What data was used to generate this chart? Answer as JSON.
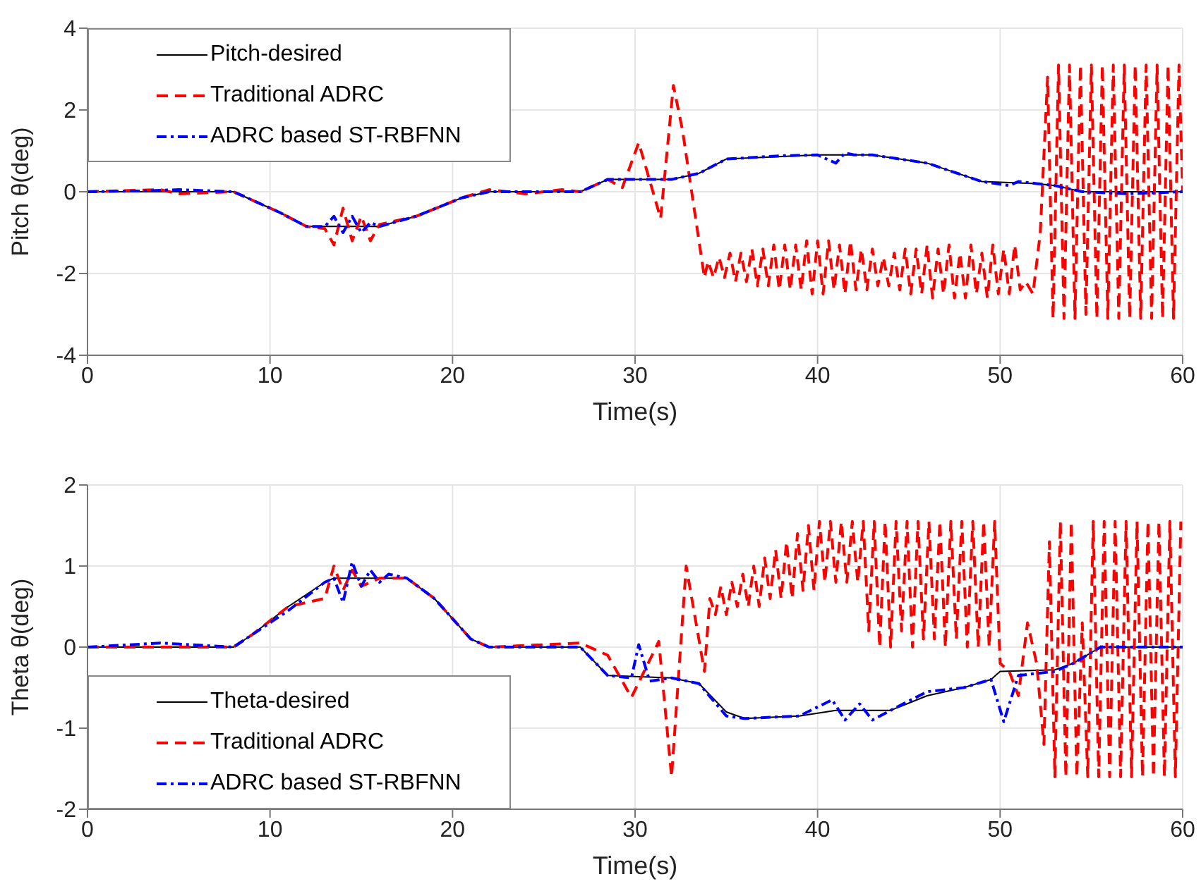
{
  "chart_data": [
    {
      "type": "line",
      "xlabel": "Time(s)",
      "ylabel": "Pitch θ(deg)",
      "xlim": [
        0,
        60
      ],
      "xticks": [
        0,
        10,
        20,
        30,
        40,
        50,
        60
      ],
      "ylim": [
        -4,
        4
      ],
      "yticks": [
        -4,
        -2,
        0,
        2,
        4
      ],
      "grid": true,
      "legend": "top left",
      "series": [
        {
          "name": "Pitch-desired",
          "color": "#000000",
          "line_style": "solid",
          "x": [
            0,
            8,
            10.5,
            12,
            16,
            18,
            20.5,
            22,
            27,
            28.5,
            32,
            33.5,
            35,
            40,
            43,
            46,
            49,
            52,
            53,
            54.5,
            60
          ],
          "values": [
            0,
            0,
            -0.5,
            -0.85,
            -0.85,
            -0.6,
            -0.15,
            0,
            0,
            0.3,
            0.3,
            0.45,
            0.8,
            0.9,
            0.9,
            0.7,
            0.25,
            0.2,
            0.15,
            0,
            0
          ]
        },
        {
          "name": "Traditional ADRC",
          "color": "#ff0000",
          "line_style": "dashed",
          "x": [
            0,
            4,
            5,
            8,
            10.5,
            12,
            13,
            13.5,
            14,
            14.5,
            15,
            15.5,
            16,
            18,
            20.5,
            22,
            24,
            26,
            27,
            28.5,
            29.3,
            30.2,
            31.4,
            32.1,
            32.6,
            33.8,
            34.0,
            34.3,
            34.6,
            34.9,
            35.2,
            35.5,
            35.8,
            36.1,
            36.4,
            36.7,
            37.0,
            37.3,
            37.6,
            37.9,
            38.2,
            38.5,
            38.8,
            39.1,
            39.4,
            39.7,
            40.0,
            40.3,
            40.6,
            40.9,
            41.2,
            41.5,
            41.8,
            42.1,
            42.4,
            42.7,
            43.0,
            43.3,
            43.6,
            43.9,
            44.2,
            44.5,
            44.8,
            45.1,
            45.4,
            45.7,
            46.0,
            46.3,
            46.6,
            46.9,
            47.2,
            47.5,
            47.8,
            48.1,
            48.4,
            48.7,
            49.0,
            49.3,
            49.6,
            49.9,
            50.2,
            50.5,
            50.8,
            51.1,
            51.4,
            51.8,
            52.2,
            52.6,
            52.9,
            53.2,
            53.5,
            53.8,
            54.1,
            54.4,
            54.7,
            55.0,
            55.3,
            55.6,
            55.9,
            56.2,
            56.5,
            56.8,
            57.1,
            57.4,
            57.7,
            58.0,
            58.3,
            58.6,
            58.9,
            59.2,
            59.5,
            59.8,
            60
          ],
          "values": [
            0,
            0.05,
            -0.05,
            0,
            -0.5,
            -0.85,
            -0.9,
            -1.3,
            -0.4,
            -1.2,
            -0.6,
            -1.2,
            -0.8,
            -0.6,
            -0.15,
            0.05,
            -0.05,
            0.05,
            0,
            0.3,
            0.1,
            1.2,
            -0.65,
            2.6,
            1.5,
            -2.1,
            -1.7,
            -2.1,
            -1.6,
            -2.1,
            -1.5,
            -2.2,
            -1.5,
            -2.2,
            -1.4,
            -2.3,
            -1.4,
            -2.3,
            -1.3,
            -2.4,
            -1.3,
            -2.4,
            -1.3,
            -2.4,
            -1.2,
            -2.5,
            -1.2,
            -2.5,
            -1.2,
            -2.4,
            -1.3,
            -2.5,
            -1.2,
            -2.4,
            -1.4,
            -2.4,
            -1.4,
            -2.3,
            -1.6,
            -2.3,
            -1.5,
            -2.4,
            -1.4,
            -2.5,
            -1.4,
            -2.5,
            -1.3,
            -2.6,
            -1.4,
            -2.5,
            -1.3,
            -2.6,
            -1.5,
            -2.6,
            -1.3,
            -2.5,
            -1.5,
            -2.6,
            -1.3,
            -2.5,
            -1.4,
            -2.5,
            -1.3,
            -2.4,
            -2.2,
            -2.5,
            -1.0,
            2.8,
            -3.1,
            3.1,
            -3.1,
            3.1,
            -3.1,
            3.1,
            -3.0,
            3.1,
            -3.1,
            3.1,
            -3.1,
            3.1,
            -3.1,
            3.1,
            -3.1,
            3.1,
            -3.1,
            3.1,
            -3.1,
            3.1,
            -3.1,
            3.1,
            -3.1,
            3.1,
            0
          ]
        },
        {
          "name": "ADRC based ST-RBFNN",
          "color": "#0000ff",
          "line_style": "dashed",
          "x": [
            0,
            3,
            5,
            8,
            10.5,
            12,
            13,
            13.5,
            14,
            14.5,
            15,
            15.5,
            16,
            18,
            20.5,
            22,
            27,
            28.5,
            32,
            33.5,
            35,
            38,
            40,
            41,
            41.5,
            42,
            43,
            46,
            49,
            50.5,
            51,
            52,
            53,
            54.5,
            57,
            60
          ],
          "values": [
            0,
            0.02,
            0.05,
            0,
            -0.5,
            -0.85,
            -0.85,
            -0.6,
            -1.0,
            -0.6,
            -1.0,
            -0.75,
            -0.85,
            -0.6,
            -0.15,
            0,
            0,
            0.3,
            0.3,
            0.45,
            0.8,
            0.88,
            0.9,
            0.7,
            0.95,
            0.9,
            0.9,
            0.7,
            0.25,
            0.15,
            0.25,
            0.2,
            0.15,
            0,
            -0.05,
            0
          ]
        }
      ]
    },
    {
      "type": "line",
      "xlabel": "Time(s)",
      "ylabel": "Theta θ(deg)",
      "xlim": [
        0,
        60
      ],
      "xticks": [
        0,
        10,
        20,
        30,
        40,
        50,
        60
      ],
      "ylim": [
        -2,
        2
      ],
      "yticks": [
        -2,
        -1,
        0,
        1,
        2
      ],
      "grid": true,
      "legend": "bottom left",
      "series": [
        {
          "name": "Theta-desired",
          "color": "#000000",
          "line_style": "solid",
          "x": [
            0,
            8,
            9,
            11,
            13,
            13.5,
            17.5,
            19,
            21,
            22,
            27,
            28.5,
            32,
            33.5,
            35,
            36,
            39,
            41,
            44,
            46,
            48,
            49.5,
            50,
            53,
            54,
            55.5,
            60
          ],
          "values": [
            0,
            0,
            0.15,
            0.5,
            0.8,
            0.85,
            0.85,
            0.6,
            0.1,
            0,
            0,
            -0.35,
            -0.38,
            -0.45,
            -0.8,
            -0.88,
            -0.85,
            -0.78,
            -0.78,
            -0.6,
            -0.5,
            -0.4,
            -0.3,
            -0.28,
            -0.2,
            0,
            0
          ]
        },
        {
          "name": "Traditional ADRC",
          "color": "#ff0000",
          "line_style": "dashed",
          "x": [
            0,
            8,
            9,
            11,
            13,
            13.5,
            14,
            14.5,
            15,
            16,
            17.5,
            19,
            21,
            22,
            27,
            28.5,
            29.8,
            31.3,
            32.0,
            32.8,
            33.8,
            34.1,
            34.4,
            34.7,
            35.0,
            35.3,
            35.6,
            35.9,
            36.2,
            36.5,
            36.8,
            37.1,
            37.4,
            37.7,
            38.0,
            38.3,
            38.6,
            38.9,
            39.2,
            39.5,
            39.8,
            40.1,
            40.4,
            40.7,
            41.0,
            41.3,
            41.6,
            41.9,
            42.2,
            42.5,
            42.8,
            43.1,
            43.4,
            43.7,
            44.0,
            44.3,
            44.6,
            44.9,
            45.2,
            45.5,
            45.8,
            46.1,
            46.4,
            46.7,
            47.0,
            47.3,
            47.6,
            47.9,
            48.2,
            48.5,
            48.8,
            49.1,
            49.4,
            49.7,
            50.0,
            50.5,
            51.0,
            51.5,
            52.0,
            52.4,
            52.7,
            53.0,
            53.3,
            53.6,
            53.9,
            54.2,
            54.5,
            54.8,
            55.1,
            55.4,
            55.7,
            56.0,
            56.3,
            56.6,
            56.9,
            57.2,
            57.5,
            57.8,
            58.1,
            58.4,
            58.7,
            59.0,
            59.3,
            59.6,
            59.9
          ],
          "values": [
            0,
            0,
            0.15,
            0.5,
            0.6,
            1.0,
            0.7,
            0.95,
            0.75,
            0.85,
            0.85,
            0.6,
            0.1,
            0,
            0.05,
            -0.1,
            -0.62,
            0.07,
            -1.6,
            1.0,
            -0.3,
            0.6,
            0.4,
            0.75,
            0.4,
            0.8,
            0.5,
            0.9,
            0.5,
            1.0,
            0.5,
            1.1,
            0.6,
            1.2,
            0.6,
            1.3,
            0.6,
            1.4,
            0.7,
            1.5,
            0.7,
            1.55,
            0.8,
            1.55,
            0.8,
            1.55,
            0.8,
            1.55,
            0.8,
            1.55,
            0.2,
            1.55,
            0,
            1.55,
            0,
            1.55,
            0.2,
            1.55,
            0,
            1.55,
            0.1,
            1.55,
            0.1,
            1.55,
            0,
            1.55,
            0.1,
            1.55,
            0,
            1.55,
            0,
            1.55,
            0,
            1.55,
            -0.2,
            -0.3,
            -0.6,
            0.3,
            -0.2,
            -1.2,
            1.3,
            -1.6,
            1.55,
            -1.6,
            1.55,
            -1.6,
            0.3,
            -1.6,
            1.55,
            -1.6,
            1.55,
            -1.6,
            1.55,
            -1.6,
            1.55,
            -1.6,
            1.55,
            -1.6,
            1.55,
            -1.6,
            1.55,
            -1.6,
            1.55,
            -1.6,
            1.55
          ]
        },
        {
          "name": "ADRC based ST-RBFNN",
          "color": "#0000ff",
          "line_style": "dashed",
          "x": [
            0,
            4,
            8,
            9,
            11,
            13,
            13.5,
            14,
            14.5,
            15,
            15.5,
            16,
            16.5,
            17.5,
            19,
            21,
            22,
            27,
            28.5,
            29.8,
            30.2,
            30.8,
            32,
            33.5,
            35,
            36,
            39,
            40.8,
            41.5,
            42.3,
            43,
            44,
            46,
            48,
            49.5,
            50.2,
            51,
            53,
            54,
            55.5,
            60
          ],
          "values": [
            0,
            0.05,
            0,
            0.15,
            0.45,
            0.8,
            0.85,
            0.55,
            1.05,
            0.75,
            0.95,
            0.8,
            0.9,
            0.85,
            0.6,
            0.1,
            0,
            0,
            -0.35,
            -0.38,
            0.03,
            -0.42,
            -0.38,
            -0.45,
            -0.85,
            -0.88,
            -0.85,
            -0.65,
            -0.9,
            -0.7,
            -0.9,
            -0.78,
            -0.55,
            -0.5,
            -0.4,
            -0.92,
            -0.35,
            -0.3,
            -0.2,
            0,
            0
          ]
        }
      ]
    }
  ]
}
